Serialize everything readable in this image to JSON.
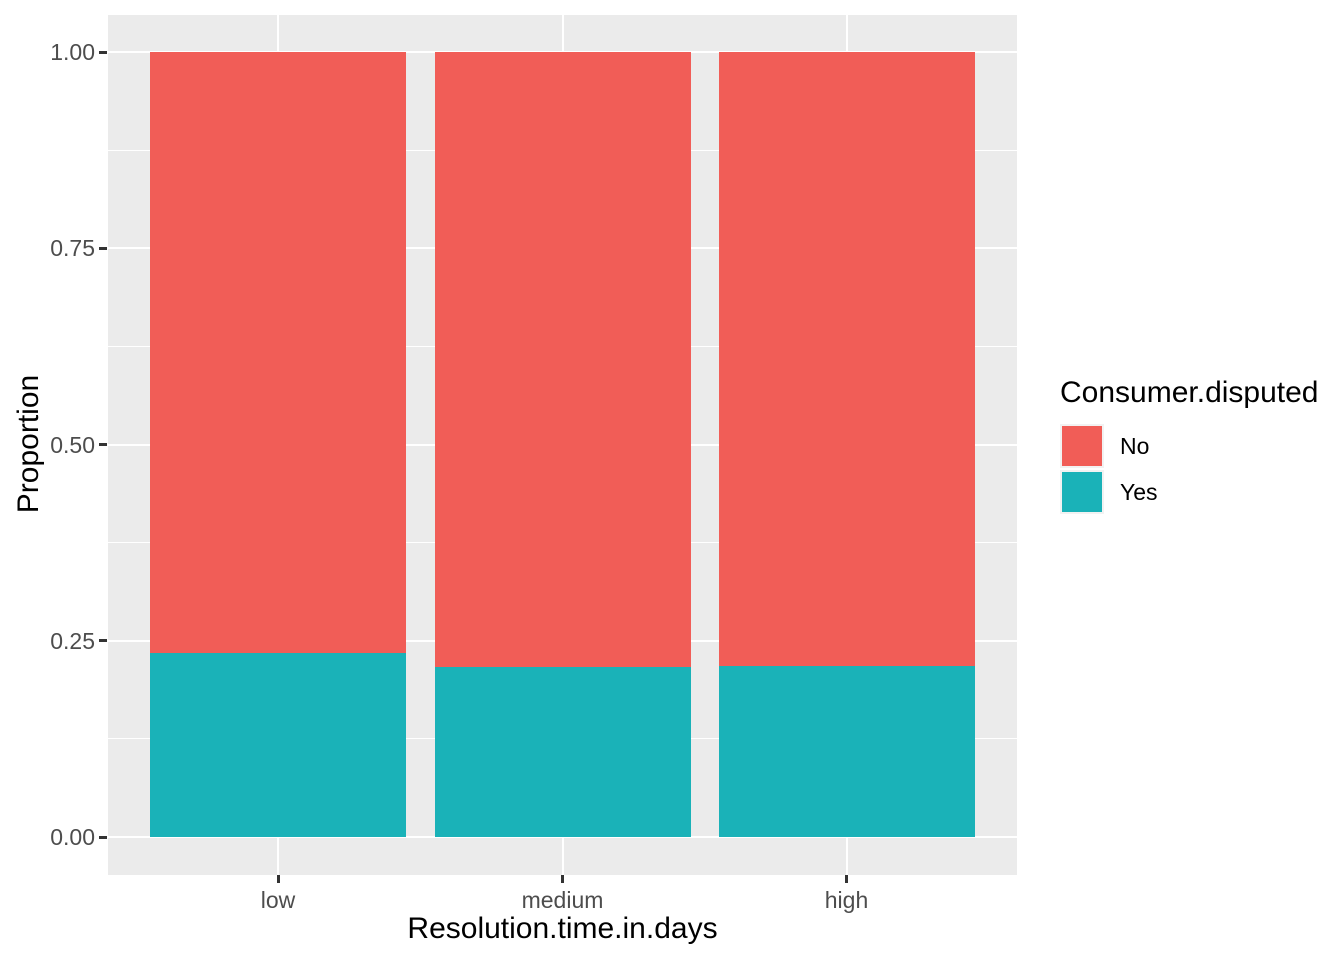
{
  "chart_data": {
    "type": "bar",
    "stacking": "fill",
    "title": "",
    "xlabel": "Resolution.time.in.days",
    "ylabel": "Proportion",
    "categories": [
      "low",
      "medium",
      "high"
    ],
    "series": [
      {
        "name": "No",
        "color": "#F15D57",
        "values": [
          0.765,
          0.784,
          0.782
        ]
      },
      {
        "name": "Yes",
        "color": "#1AB2B8",
        "values": [
          0.235,
          0.216,
          0.218
        ]
      }
    ],
    "legend": {
      "title": "Consumer.disputed",
      "position": "right",
      "entries": [
        "No",
        "Yes"
      ]
    },
    "y_axis": {
      "range": [
        0,
        1
      ],
      "ticks": [
        0,
        0.25,
        0.5,
        0.75,
        1
      ],
      "tick_labels": [
        "0.00",
        "0.25",
        "0.50",
        "0.75",
        "1.00"
      ],
      "minor_ticks": [
        0.125,
        0.375,
        0.625,
        0.875
      ]
    },
    "style": {
      "panel_background": "#EBEBEB",
      "grid_color": "#FFFFFF",
      "tick_mark_color": "#333333",
      "axis_text_color": "#4D4D4D",
      "title_color": "#000000"
    }
  }
}
